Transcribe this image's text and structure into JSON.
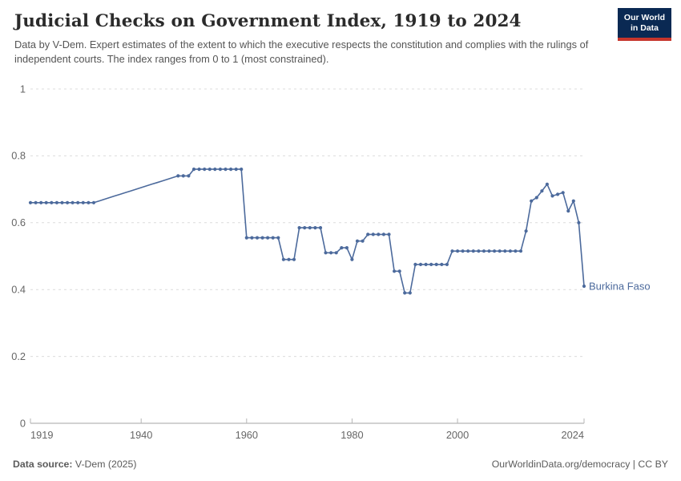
{
  "header": {
    "title": "Judicial Checks on Government Index, 1919 to 2024",
    "subtitle": "Data by V-Dem. Expert estimates of the extent to which the executive respects the constitution and complies with the rulings of independent courts. The index ranges from 0 to 1 (most constrained)."
  },
  "logo": {
    "line1": "Our World",
    "line2": "in Data"
  },
  "footer": {
    "data_source_label": "Data source:",
    "data_source_value": " V-Dem (2025)",
    "right": "OurWorldinData.org/democracy | CC BY"
  },
  "colors": {
    "line": "#4C6A9C",
    "entity_label": "#4C6A9C",
    "gridline": "#dcdcdc",
    "axis": "#a5a5a5",
    "tick": "#b5b5b5",
    "logo_navy": "#0a2953",
    "logo_red": "#c6352c"
  },
  "chart_data": {
    "type": "line",
    "title": "Judicial Checks on Government Index, 1919 to 2024",
    "entity": "Burkina Faso",
    "xlabel": "",
    "ylabel": "",
    "x_range": [
      1919,
      2024
    ],
    "ylim": [
      0,
      1
    ],
    "y_ticks": [
      0,
      0.2,
      0.4,
      0.6,
      0.8,
      1
    ],
    "y_tick_labels": [
      "0",
      "0.2",
      "0.4",
      "0.6",
      "0.8",
      "1"
    ],
    "x_ticks": [
      1919,
      1940,
      1960,
      1980,
      2000,
      2024
    ],
    "grid": true,
    "legend_position": "end-of-line-label",
    "note": "points are [year, value, has_marker]; 1932-1946 are linearly interpolated (no survey markers)",
    "points": [
      [
        1919,
        0.66,
        1
      ],
      [
        1920,
        0.66,
        1
      ],
      [
        1921,
        0.66,
        1
      ],
      [
        1922,
        0.66,
        1
      ],
      [
        1923,
        0.66,
        1
      ],
      [
        1924,
        0.66,
        1
      ],
      [
        1925,
        0.66,
        1
      ],
      [
        1926,
        0.66,
        1
      ],
      [
        1927,
        0.66,
        1
      ],
      [
        1928,
        0.66,
        1
      ],
      [
        1929,
        0.66,
        1
      ],
      [
        1930,
        0.66,
        1
      ],
      [
        1931,
        0.66,
        1
      ],
      [
        1932,
        0.665,
        0
      ],
      [
        1933,
        0.67,
        0
      ],
      [
        1934,
        0.675,
        0
      ],
      [
        1935,
        0.68,
        0
      ],
      [
        1936,
        0.685,
        0
      ],
      [
        1937,
        0.69,
        0
      ],
      [
        1938,
        0.695,
        0
      ],
      [
        1939,
        0.7,
        0
      ],
      [
        1940,
        0.705,
        0
      ],
      [
        1941,
        0.71,
        0
      ],
      [
        1942,
        0.715,
        0
      ],
      [
        1943,
        0.72,
        0
      ],
      [
        1944,
        0.725,
        0
      ],
      [
        1945,
        0.73,
        0
      ],
      [
        1946,
        0.735,
        0
      ],
      [
        1947,
        0.74,
        1
      ],
      [
        1948,
        0.74,
        1
      ],
      [
        1949,
        0.74,
        1
      ],
      [
        1950,
        0.76,
        1
      ],
      [
        1951,
        0.76,
        1
      ],
      [
        1952,
        0.76,
        1
      ],
      [
        1953,
        0.76,
        1
      ],
      [
        1954,
        0.76,
        1
      ],
      [
        1955,
        0.76,
        1
      ],
      [
        1956,
        0.76,
        1
      ],
      [
        1957,
        0.76,
        1
      ],
      [
        1958,
        0.76,
        1
      ],
      [
        1959,
        0.76,
        1
      ],
      [
        1960,
        0.555,
        1
      ],
      [
        1961,
        0.555,
        1
      ],
      [
        1962,
        0.555,
        1
      ],
      [
        1963,
        0.555,
        1
      ],
      [
        1964,
        0.555,
        1
      ],
      [
        1965,
        0.555,
        1
      ],
      [
        1966,
        0.555,
        1
      ],
      [
        1967,
        0.49,
        1
      ],
      [
        1968,
        0.49,
        1
      ],
      [
        1969,
        0.49,
        1
      ],
      [
        1970,
        0.585,
        1
      ],
      [
        1971,
        0.585,
        1
      ],
      [
        1972,
        0.585,
        1
      ],
      [
        1973,
        0.585,
        1
      ],
      [
        1974,
        0.585,
        1
      ],
      [
        1975,
        0.51,
        1
      ],
      [
        1976,
        0.51,
        1
      ],
      [
        1977,
        0.51,
        1
      ],
      [
        1978,
        0.525,
        1
      ],
      [
        1979,
        0.525,
        1
      ],
      [
        1980,
        0.49,
        1
      ],
      [
        1981,
        0.545,
        1
      ],
      [
        1982,
        0.545,
        1
      ],
      [
        1983,
        0.565,
        1
      ],
      [
        1984,
        0.565,
        1
      ],
      [
        1985,
        0.565,
        1
      ],
      [
        1986,
        0.565,
        1
      ],
      [
        1987,
        0.565,
        1
      ],
      [
        1988,
        0.455,
        1
      ],
      [
        1989,
        0.455,
        1
      ],
      [
        1990,
        0.39,
        1
      ],
      [
        1991,
        0.39,
        1
      ],
      [
        1992,
        0.475,
        1
      ],
      [
        1993,
        0.475,
        1
      ],
      [
        1994,
        0.475,
        1
      ],
      [
        1995,
        0.475,
        1
      ],
      [
        1996,
        0.475,
        1
      ],
      [
        1997,
        0.475,
        1
      ],
      [
        1998,
        0.475,
        1
      ],
      [
        1999,
        0.515,
        1
      ],
      [
        2000,
        0.515,
        1
      ],
      [
        2001,
        0.515,
        1
      ],
      [
        2002,
        0.515,
        1
      ],
      [
        2003,
        0.515,
        1
      ],
      [
        2004,
        0.515,
        1
      ],
      [
        2005,
        0.515,
        1
      ],
      [
        2006,
        0.515,
        1
      ],
      [
        2007,
        0.515,
        1
      ],
      [
        2008,
        0.515,
        1
      ],
      [
        2009,
        0.515,
        1
      ],
      [
        2010,
        0.515,
        1
      ],
      [
        2011,
        0.515,
        1
      ],
      [
        2012,
        0.515,
        1
      ],
      [
        2013,
        0.575,
        1
      ],
      [
        2014,
        0.665,
        1
      ],
      [
        2015,
        0.675,
        1
      ],
      [
        2016,
        0.695,
        1
      ],
      [
        2017,
        0.715,
        1
      ],
      [
        2018,
        0.68,
        1
      ],
      [
        2019,
        0.685,
        1
      ],
      [
        2020,
        0.69,
        1
      ],
      [
        2021,
        0.635,
        1
      ],
      [
        2022,
        0.665,
        1
      ],
      [
        2023,
        0.6,
        1
      ],
      [
        2024,
        0.41,
        1
      ]
    ]
  }
}
